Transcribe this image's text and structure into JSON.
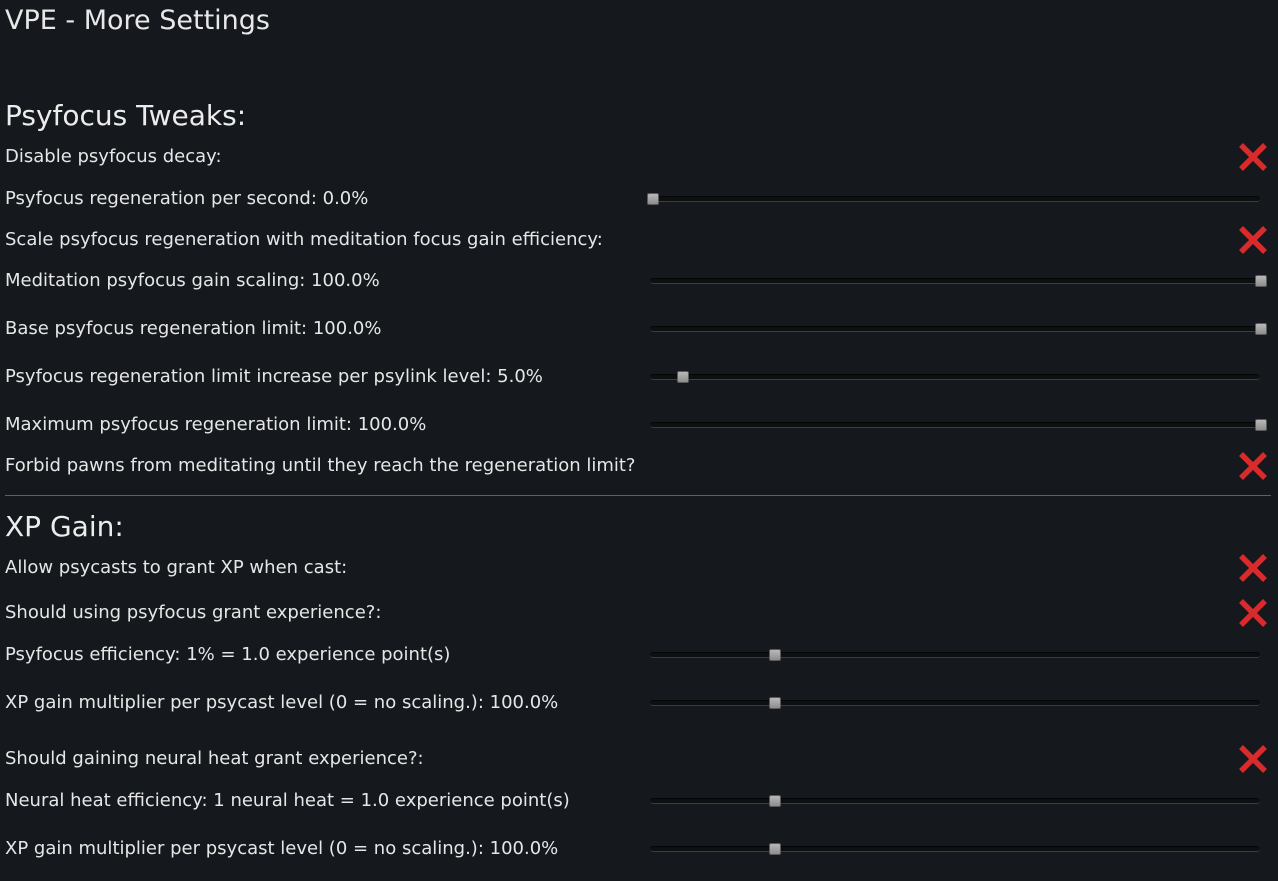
{
  "page": {
    "title": "VPE - More Settings"
  },
  "colors": {
    "background": "#15191d",
    "text": "#e6e6e6",
    "cross": "#d92b2b",
    "divider": "#5d6166"
  },
  "sections": [
    {
      "title": "Psyfocus Tweaks:",
      "rows": [
        {
          "type": "checkbox",
          "label": "Disable psyfocus decay:",
          "checked": false,
          "icon": "cross-icon"
        },
        {
          "type": "slider",
          "label": "Psyfocus regeneration per second: 0.0%",
          "fraction": 0.0
        },
        {
          "type": "checkbox",
          "label": "Scale psyfocus regeneration with meditation focus gain efficiency:",
          "checked": false,
          "icon": "cross-icon"
        },
        {
          "type": "slider",
          "label": "Meditation psyfocus gain scaling: 100.0%",
          "fraction": 1.0
        },
        {
          "type": "slider",
          "label": "Base psyfocus regeneration limit: 100.0%",
          "fraction": 1.0
        },
        {
          "type": "slider",
          "label": "Psyfocus regeneration limit increase per psylink level: 5.0%",
          "fraction": 0.05
        },
        {
          "type": "slider",
          "label": "Maximum psyfocus regeneration limit: 100.0%",
          "fraction": 1.0
        },
        {
          "type": "checkbox",
          "label": "Forbid pawns from meditating until they reach the regeneration limit?",
          "checked": false,
          "icon": "cross-icon"
        }
      ]
    },
    {
      "title": "XP Gain:",
      "rows": [
        {
          "type": "checkbox",
          "label": "Allow psycasts to grant XP when cast:",
          "checked": false,
          "icon": "cross-icon"
        },
        {
          "type": "checkbox",
          "label": "Should using psyfocus grant experience?:",
          "checked": false,
          "icon": "cross-icon"
        },
        {
          "type": "slider",
          "label": "Psyfocus efficiency: 1% = 1.0 experience point(s)",
          "fraction": 0.2
        },
        {
          "type": "slider",
          "label": "XP gain multiplier per psycast level (0 = no scaling.): 100.0%",
          "fraction": 0.2
        },
        {
          "type": "checkbox",
          "label": "Should gaining neural heat grant experience?:",
          "checked": false,
          "icon": "cross-icon"
        },
        {
          "type": "slider",
          "label": "Neural heat efficiency: 1 neural heat = 1.0 experience point(s)",
          "fraction": 0.2
        },
        {
          "type": "slider",
          "label": "XP gain multiplier per psycast level (0 = no scaling.): 100.0%",
          "fraction": 0.2
        }
      ]
    }
  ]
}
